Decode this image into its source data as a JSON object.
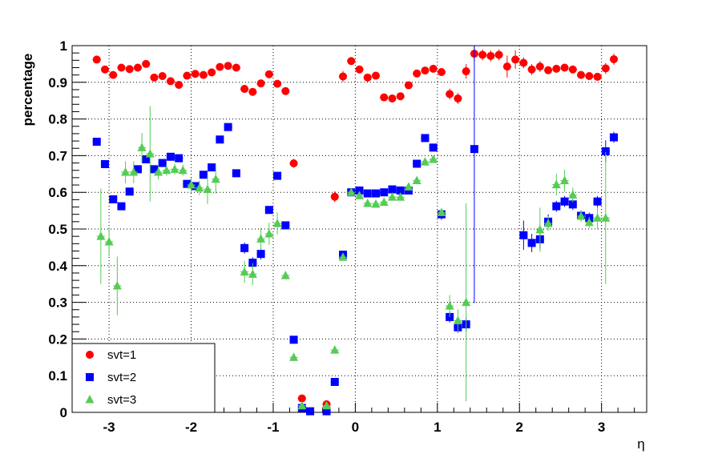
{
  "chart_data": {
    "type": "scatter",
    "xlabel": "η",
    "ylabel": "percentage",
    "xlim": [
      -3.45,
      3.55
    ],
    "ylim": [
      0,
      1
    ],
    "grid": true,
    "legend_placement": "bottom-left",
    "x_ticks": [
      "-3",
      "-2",
      "-1",
      "0",
      "1",
      "2",
      "3"
    ],
    "y_ticks": [
      "0",
      "0.1",
      "0.2",
      "0.3",
      "0.4",
      "0.5",
      "0.6",
      "0.7",
      "0.8",
      "0.9",
      "1"
    ],
    "series": [
      {
        "name": "svt=1",
        "color": "#ff0000",
        "marker": "circle",
        "points": [
          [
            -3.15,
            0.962
          ],
          [
            -3.05,
            0.935
          ],
          [
            -2.95,
            0.92
          ],
          [
            -2.85,
            0.94
          ],
          [
            -2.75,
            0.936
          ],
          [
            -2.65,
            0.94
          ],
          [
            -2.55,
            0.95
          ],
          [
            -2.45,
            0.913
          ],
          [
            -2.35,
            0.917
          ],
          [
            -2.25,
            0.903
          ],
          [
            -2.15,
            0.893
          ],
          [
            -2.05,
            0.918
          ],
          [
            -1.95,
            0.923
          ],
          [
            -1.85,
            0.92
          ],
          [
            -1.75,
            0.927
          ],
          [
            -1.65,
            0.942
          ],
          [
            -1.55,
            0.945
          ],
          [
            -1.45,
            0.94
          ],
          [
            -1.35,
            0.882
          ],
          [
            -1.25,
            0.874
          ],
          [
            -1.15,
            0.897
          ],
          [
            -1.05,
            0.922
          ],
          [
            -0.95,
            0.896
          ],
          [
            -0.85,
            0.876
          ],
          [
            -0.75,
            0.679
          ],
          [
            -0.65,
            0.038
          ],
          [
            -0.35,
            0.022
          ],
          [
            -0.25,
            0.588
          ],
          [
            -0.15,
            0.916
          ],
          [
            -0.05,
            0.958
          ],
          [
            0.05,
            0.935
          ],
          [
            0.15,
            0.913
          ],
          [
            0.25,
            0.918
          ],
          [
            0.35,
            0.859
          ],
          [
            0.45,
            0.856
          ],
          [
            0.55,
            0.862
          ],
          [
            0.65,
            0.892
          ],
          [
            0.75,
            0.924
          ],
          [
            0.85,
            0.932
          ],
          [
            0.95,
            0.937
          ],
          [
            1.05,
            0.928
          ],
          [
            1.15,
            0.868
          ],
          [
            1.25,
            0.856
          ],
          [
            1.35,
            0.93
          ],
          [
            1.45,
            0.978
          ],
          [
            1.55,
            0.975
          ],
          [
            1.65,
            0.972
          ],
          [
            1.75,
            0.975
          ],
          [
            1.85,
            0.943
          ],
          [
            1.95,
            0.962
          ],
          [
            2.05,
            0.953
          ],
          [
            2.15,
            0.935
          ],
          [
            2.25,
            0.943
          ],
          [
            2.35,
            0.933
          ],
          [
            2.45,
            0.937
          ],
          [
            2.55,
            0.94
          ],
          [
            2.65,
            0.935
          ],
          [
            2.75,
            0.92
          ],
          [
            2.85,
            0.917
          ],
          [
            2.95,
            0.915
          ],
          [
            3.05,
            0.938
          ],
          [
            3.15,
            0.963
          ]
        ],
        "errors": [
          0.01,
          0.008,
          0.008,
          0.008,
          0.008,
          0.008,
          0.008,
          0.008,
          0.008,
          0.008,
          0.008,
          0.008,
          0.008,
          0.008,
          0.008,
          0.008,
          0.008,
          0.008,
          0.008,
          0.008,
          0.008,
          0.008,
          0.01,
          0.01,
          0.012,
          0.006,
          0.006,
          0.015,
          0.015,
          0.01,
          0.008,
          0.008,
          0.008,
          0.008,
          0.008,
          0.008,
          0.008,
          0.008,
          0.008,
          0.008,
          0.008,
          0.015,
          0.015,
          0.02,
          0.02,
          0.015,
          0.015,
          0.015,
          0.03,
          0.025,
          0.015,
          0.015,
          0.015,
          0.01,
          0.01,
          0.01,
          0.01,
          0.01,
          0.01,
          0.01,
          0.015,
          0.015
        ]
      },
      {
        "name": "svt=2",
        "color": "#0000ff",
        "marker": "square",
        "points": [
          [
            -3.15,
            0.738
          ],
          [
            -3.05,
            0.677
          ],
          [
            -2.95,
            0.581
          ],
          [
            -2.85,
            0.562
          ],
          [
            -2.75,
            0.602
          ],
          [
            -2.65,
            0.663
          ],
          [
            -2.55,
            0.69
          ],
          [
            -2.45,
            0.663
          ],
          [
            -2.35,
            0.68
          ],
          [
            -2.25,
            0.697
          ],
          [
            -2.15,
            0.693
          ],
          [
            -2.05,
            0.623
          ],
          [
            -1.95,
            0.617
          ],
          [
            -1.85,
            0.648
          ],
          [
            -1.75,
            0.668
          ],
          [
            -1.65,
            0.744
          ],
          [
            -1.55,
            0.778
          ],
          [
            -1.45,
            0.652
          ],
          [
            -1.35,
            0.448
          ],
          [
            -1.25,
            0.408
          ],
          [
            -1.15,
            0.432
          ],
          [
            -1.05,
            0.552
          ],
          [
            -0.95,
            0.645
          ],
          [
            -0.85,
            0.51
          ],
          [
            -0.75,
            0.198
          ],
          [
            -0.65,
            0.012
          ],
          [
            -0.55,
            0.003
          ],
          [
            -0.35,
            0.003
          ],
          [
            -0.25,
            0.083
          ],
          [
            -0.15,
            0.43
          ],
          [
            -0.05,
            0.6
          ],
          [
            0.05,
            0.605
          ],
          [
            0.15,
            0.597
          ],
          [
            0.25,
            0.597
          ],
          [
            0.35,
            0.6
          ],
          [
            0.45,
            0.608
          ],
          [
            0.55,
            0.605
          ],
          [
            0.65,
            0.605
          ],
          [
            0.75,
            0.678
          ],
          [
            0.85,
            0.748
          ],
          [
            0.95,
            0.722
          ],
          [
            1.05,
            0.54
          ],
          [
            1.15,
            0.26
          ],
          [
            1.25,
            0.232
          ],
          [
            1.35,
            0.24
          ],
          [
            1.45,
            0.718
          ],
          [
            2.05,
            0.483
          ],
          [
            2.15,
            0.462
          ],
          [
            2.25,
            0.472
          ],
          [
            2.35,
            0.52
          ],
          [
            2.45,
            0.562
          ],
          [
            2.55,
            0.575
          ],
          [
            2.65,
            0.567
          ],
          [
            2.75,
            0.536
          ],
          [
            2.85,
            0.53
          ],
          [
            2.95,
            0.575
          ],
          [
            3.05,
            0.712
          ],
          [
            3.15,
            0.75
          ]
        ],
        "errors": [
          0.01,
          0.01,
          0.01,
          0.01,
          0.01,
          0.01,
          0.01,
          0.01,
          0.01,
          0.01,
          0.01,
          0.01,
          0.01,
          0.01,
          0.01,
          0.01,
          0.01,
          0.01,
          0.015,
          0.015,
          0.015,
          0.01,
          0.01,
          0.01,
          0.01,
          0.005,
          0.005,
          0.005,
          0.01,
          0.01,
          0.01,
          0.01,
          0.01,
          0.01,
          0.01,
          0.01,
          0.01,
          0.01,
          0.01,
          0.01,
          0.01,
          0.015,
          0.015,
          0.015,
          0.02,
          0.42,
          0.04,
          0.025,
          0.025,
          0.02,
          0.015,
          0.015,
          0.015,
          0.015,
          0.015,
          0.015,
          0.03,
          0.015
        ]
      },
      {
        "name": "svt=3",
        "color": "#55cc55",
        "marker": "triangle",
        "points": [
          [
            -3.1,
            0.48
          ],
          [
            -3.0,
            0.465
          ],
          [
            -2.9,
            0.345
          ],
          [
            -2.8,
            0.655
          ],
          [
            -2.7,
            0.655
          ],
          [
            -2.6,
            0.722
          ],
          [
            -2.5,
            0.705
          ],
          [
            -2.4,
            0.655
          ],
          [
            -2.3,
            0.66
          ],
          [
            -2.2,
            0.663
          ],
          [
            -2.1,
            0.66
          ],
          [
            -2.0,
            0.62
          ],
          [
            -1.9,
            0.612
          ],
          [
            -1.8,
            0.608
          ],
          [
            -1.7,
            0.636
          ],
          [
            -1.35,
            0.383
          ],
          [
            -1.25,
            0.377
          ],
          [
            -1.15,
            0.473
          ],
          [
            -1.05,
            0.487
          ],
          [
            -0.95,
            0.515
          ],
          [
            -0.85,
            0.373
          ],
          [
            -0.75,
            0.15
          ],
          [
            -0.65,
            0.018
          ],
          [
            -0.35,
            0.018
          ],
          [
            -0.25,
            0.17
          ],
          [
            -0.15,
            0.423
          ],
          [
            -0.05,
            0.6
          ],
          [
            0.05,
            0.591
          ],
          [
            0.15,
            0.57
          ],
          [
            0.25,
            0.568
          ],
          [
            0.35,
            0.573
          ],
          [
            0.45,
            0.587
          ],
          [
            0.55,
            0.587
          ],
          [
            0.65,
            0.615
          ],
          [
            0.75,
            0.632
          ],
          [
            0.85,
            0.683
          ],
          [
            0.95,
            0.69
          ],
          [
            1.05,
            0.545
          ],
          [
            1.15,
            0.29
          ],
          [
            1.25,
            0.25
          ],
          [
            1.35,
            0.3
          ],
          [
            2.25,
            0.498
          ],
          [
            2.35,
            0.515
          ],
          [
            2.45,
            0.621
          ],
          [
            2.55,
            0.632
          ],
          [
            2.65,
            0.593
          ],
          [
            2.75,
            0.535
          ],
          [
            2.85,
            0.518
          ],
          [
            2.95,
            0.53
          ],
          [
            3.05,
            0.53
          ]
        ],
        "errors": [
          0.13,
          0.04,
          0.08,
          0.03,
          0.03,
          0.04,
          0.13,
          0.02,
          0.015,
          0.015,
          0.015,
          0.02,
          0.02,
          0.04,
          0.04,
          0.03,
          0.03,
          0.03,
          0.03,
          0.03,
          0.01,
          0.01,
          0.005,
          0.005,
          0.01,
          0.01,
          0.01,
          0.01,
          0.01,
          0.01,
          0.01,
          0.01,
          0.01,
          0.01,
          0.01,
          0.01,
          0.01,
          0.01,
          0.03,
          0.03,
          0.27,
          0.06,
          0.02,
          0.03,
          0.03,
          0.02,
          0.015,
          0.015,
          0.03,
          0.18
        ]
      }
    ]
  }
}
